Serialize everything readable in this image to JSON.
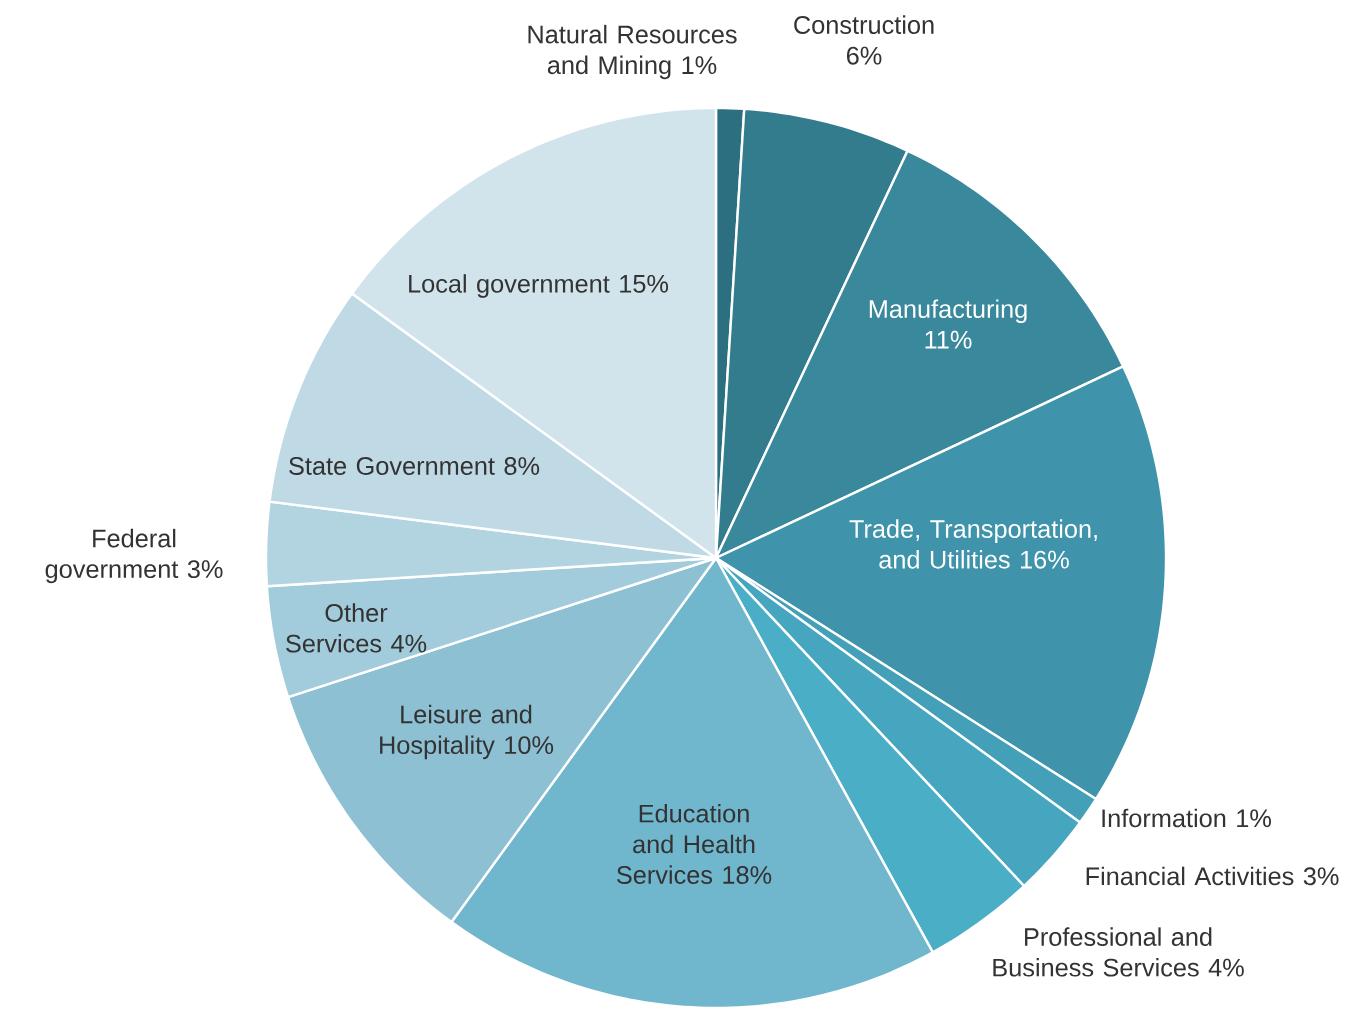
{
  "chart_data": {
    "type": "pie",
    "categories": [
      "Natural Resources and Mining",
      "Construction",
      "Manufacturing",
      "Trade, Transportation, and Utilities",
      "Information",
      "Financial Activities",
      "Professional and Business Services",
      "Education and Health Services",
      "Leisure and Hospitality",
      "Other Services",
      "Federal government",
      "State Government",
      "Local government"
    ],
    "values": [
      1,
      6,
      11,
      16,
      1,
      3,
      4,
      18,
      10,
      4,
      3,
      8,
      15
    ],
    "value_labels": [
      "1%",
      "6%",
      "11%",
      "16%",
      "1%",
      "3%",
      "4%",
      "18%",
      "10%",
      "4%",
      "3%",
      "8%",
      "15%"
    ],
    "colors": [
      "#2b6f80",
      "#337c8e",
      "#3a889b",
      "#3f93aa",
      "#43a0b8",
      "#46a6c0",
      "#4aaec7",
      "#70b7cd",
      "#8dc0d3",
      "#a2cbdb",
      "#b2d4e1",
      "#bfdae5",
      "#d1e4ec"
    ]
  }
}
